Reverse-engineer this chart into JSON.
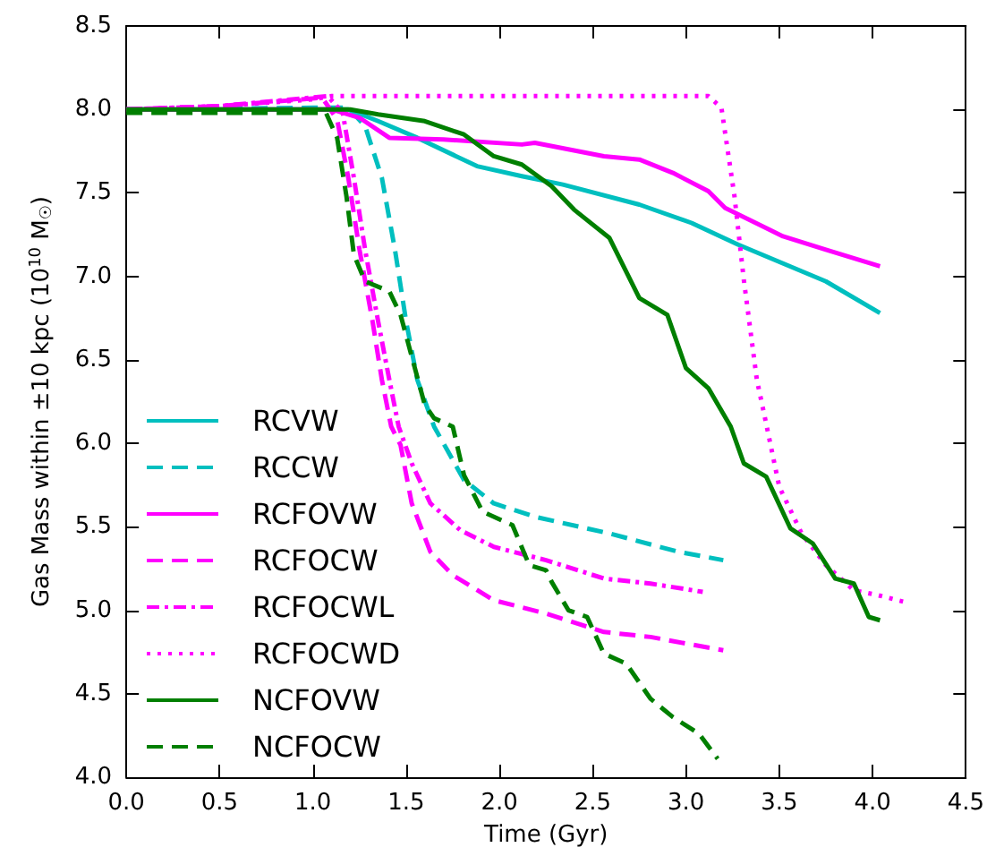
{
  "chart_data": {
    "type": "line",
    "xlabel": "Time (Gyr)",
    "ylabel": "Gas Mass within ±10 kpc (10$^{10}$ M$_{☉}$)",
    "xlim": [
      0,
      4.5
    ],
    "ylim": [
      4,
      8.5
    ],
    "xticks": [
      {
        "value": 0,
        "label": "0.0"
      },
      0.5,
      {
        "value": 1,
        "label": "1.0"
      },
      1.5,
      {
        "value": 2,
        "label": "2.0"
      },
      2.5,
      {
        "value": 3,
        "label": "3.0"
      },
      3.5,
      {
        "value": 4,
        "label": "4.0"
      },
      4.5
    ],
    "yticks": [
      {
        "value": 4,
        "label": "4.0"
      },
      4.5,
      {
        "value": 5,
        "label": "5.0"
      },
      5.5,
      {
        "value": 6,
        "label": "6.0"
      },
      6.5,
      {
        "value": 7,
        "label": "7.0"
      },
      7.5,
      {
        "value": 8,
        "label": "8.0"
      },
      8.5
    ],
    "grid": false,
    "legend": "bottom left",
    "marker": "none",
    "series": [
      {
        "name": "RCVW",
        "color": "#00bfbf",
        "line_style": "solid",
        "x": [
          0,
          1.0,
          1.19,
          1.35,
          1.56,
          1.88,
          2.12,
          2.34,
          2.75,
          3.03,
          3.28,
          3.75,
          4.04
        ],
        "values": [
          8.0,
          8.0,
          8.0,
          7.93,
          7.83,
          7.66,
          7.6,
          7.55,
          7.43,
          7.32,
          7.19,
          6.97,
          6.78
        ]
      },
      {
        "name": "RCCW",
        "color": "#00bfbf",
        "line_style": "dashed",
        "x": [
          0,
          1.0,
          1.19,
          1.28,
          1.37,
          1.44,
          1.5,
          1.56,
          1.65,
          1.72,
          1.81,
          1.97,
          2.19,
          2.59,
          2.96,
          3.2
        ],
        "values": [
          8.0,
          8.01,
          8.01,
          7.9,
          7.59,
          7.16,
          6.73,
          6.38,
          6.1,
          5.96,
          5.78,
          5.64,
          5.56,
          5.46,
          5.35,
          5.3
        ]
      },
      {
        "name": "RCFOVW",
        "color": "#ff00ff",
        "line_style": "solid",
        "x": [
          0,
          1.0,
          1.1,
          1.25,
          1.41,
          1.7,
          2.12,
          2.19,
          2.56,
          2.75,
          2.93,
          3.12,
          3.21,
          3.52,
          3.75,
          4.04
        ],
        "values": [
          8.0,
          8.0,
          8.0,
          7.95,
          7.83,
          7.82,
          7.79,
          7.8,
          7.72,
          7.7,
          7.62,
          7.51,
          7.41,
          7.24,
          7.16,
          7.06
        ]
      },
      {
        "name": "RCFOCW",
        "color": "#ff00ff",
        "line_style": "dashed",
        "x": [
          0,
          0.5,
          1.05,
          1.13,
          1.19,
          1.25,
          1.32,
          1.37,
          1.42,
          1.47,
          1.53,
          1.63,
          1.75,
          1.97,
          2.25,
          2.56,
          2.81,
          3.2
        ],
        "values": [
          8.0,
          8.02,
          8.07,
          7.94,
          7.59,
          7.16,
          6.73,
          6.38,
          6.1,
          5.99,
          5.64,
          5.35,
          5.21,
          5.06,
          4.98,
          4.87,
          4.84,
          4.76
        ]
      },
      {
        "name": "RCFOCWL",
        "color": "#ff00ff",
        "line_style": "dashdot",
        "x": [
          0,
          0.5,
          1.08,
          1.16,
          1.22,
          1.28,
          1.35,
          1.41,
          1.46,
          1.53,
          1.63,
          1.79,
          1.97,
          2.25,
          2.56,
          2.81,
          3.09
        ],
        "values": [
          8.0,
          8.02,
          8.08,
          7.98,
          7.59,
          7.16,
          6.73,
          6.38,
          6.1,
          5.88,
          5.64,
          5.48,
          5.38,
          5.3,
          5.19,
          5.16,
          5.11
        ]
      },
      {
        "name": "RCFOCWD",
        "color": "#ff00ff",
        "line_style": "dotted",
        "x": [
          0,
          0.5,
          1.0,
          1.1,
          3.12,
          3.19,
          3.26,
          3.31,
          3.38,
          3.42,
          3.5,
          3.62,
          3.75,
          3.9,
          4.03,
          4.17
        ],
        "values": [
          8.0,
          8.02,
          8.06,
          8.08,
          8.08,
          8.01,
          7.48,
          6.98,
          6.38,
          6.17,
          5.74,
          5.46,
          5.27,
          5.12,
          5.09,
          5.05
        ]
      },
      {
        "name": "NCFOVW",
        "color": "#007f00",
        "line_style": "solid",
        "x": [
          0,
          1.2,
          1.35,
          1.6,
          1.81,
          1.97,
          2.12,
          2.28,
          2.4,
          2.59,
          2.75,
          2.9,
          3.0,
          3.12,
          3.24,
          3.31,
          3.43,
          3.56,
          3.68,
          3.8,
          3.9,
          3.98,
          4.04
        ],
        "values": [
          8.0,
          8.0,
          7.97,
          7.93,
          7.85,
          7.72,
          7.67,
          7.54,
          7.4,
          7.23,
          6.87,
          6.77,
          6.45,
          6.33,
          6.1,
          5.88,
          5.8,
          5.49,
          5.4,
          5.19,
          5.16,
          4.96,
          4.94
        ]
      },
      {
        "name": "NCFOCW",
        "color": "#007f00",
        "line_style": "dashed",
        "x": [
          0,
          1.07,
          1.13,
          1.18,
          1.22,
          1.28,
          1.41,
          1.47,
          1.53,
          1.6,
          1.65,
          1.75,
          1.81,
          1.91,
          2.07,
          2.16,
          2.25,
          2.28,
          2.37,
          2.47,
          2.56,
          2.68,
          2.81,
          2.93,
          3.07,
          3.17
        ],
        "values": [
          7.98,
          7.98,
          7.83,
          7.48,
          7.13,
          6.97,
          6.91,
          6.77,
          6.52,
          6.23,
          6.15,
          6.1,
          5.81,
          5.59,
          5.51,
          5.27,
          5.24,
          5.17,
          5.0,
          4.96,
          4.74,
          4.68,
          4.47,
          4.36,
          4.26,
          4.11
        ]
      }
    ]
  }
}
